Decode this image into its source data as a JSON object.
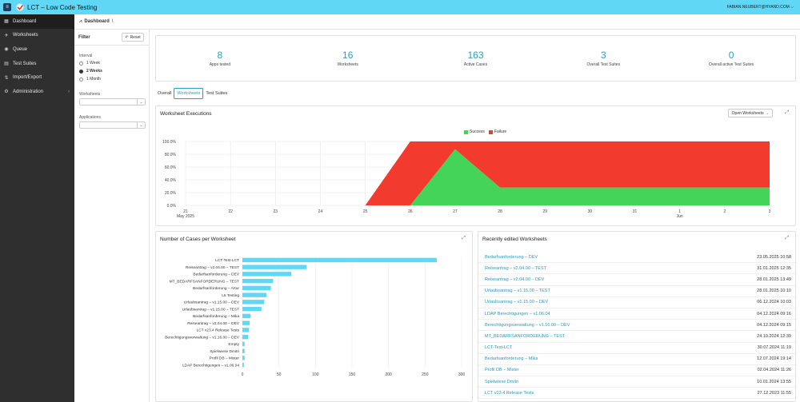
{
  "header": {
    "title": "LCT – Low Code Testing",
    "user": "FABIAN.NEUBERT@HYAND.COM ⌵"
  },
  "sidebar": {
    "items": [
      {
        "label": "Dashboard",
        "icon": "dashboard-icon",
        "glyph": "▦",
        "active": true
      },
      {
        "label": "Worksheets",
        "icon": "rocket-icon",
        "glyph": "✈"
      },
      {
        "label": "Queue",
        "icon": "queue-icon",
        "glyph": "◉"
      },
      {
        "label": "Test Suites",
        "icon": "document-icon",
        "glyph": "▤"
      },
      {
        "label": "Import/Export",
        "icon": "import-export-icon",
        "glyph": "⇅"
      },
      {
        "label": "Administration",
        "icon": "gear-icon",
        "glyph": "⚙",
        "chevron": "›"
      }
    ]
  },
  "breadcrumb": {
    "label": "Dashboard",
    "sep": "\\"
  },
  "filter": {
    "title": "Filter",
    "reset": "Reset",
    "interval_label": "Interval",
    "intervals": [
      "1 Week",
      "2 Weeks",
      "1 Month"
    ],
    "selected": 1,
    "worksheets_label": "Worksheets",
    "applications_label": "Applications"
  },
  "stats": [
    {
      "value": "8",
      "label": "Apps tested"
    },
    {
      "value": "16",
      "label": "Worksheets"
    },
    {
      "value": "163",
      "label": "Active Cases"
    },
    {
      "value": "3",
      "label": "Overall Test Suites"
    },
    {
      "value": "0",
      "label": "Overall active Test Suites"
    }
  ],
  "tabs": [
    "Overall",
    "Worksheets",
    "Test Suites"
  ],
  "active_tab": 1,
  "executions": {
    "title": "Worksheet Executions",
    "open_button": "Open Worksheets →",
    "legend": [
      "Success",
      "Failure"
    ]
  },
  "cases": {
    "title": "Number of Cases per Worksheet"
  },
  "recent": {
    "title": "Recently edited Worksheets",
    "rows": [
      {
        "name": "Bedarfsanforderung – DEV",
        "date": "23.05.2025 10:58"
      },
      {
        "name": "Reiseantrag – v2.04.00 – TEST",
        "date": "31.01.2025 12:35"
      },
      {
        "name": "Reiseantrag – v2.04.00 – DEV",
        "date": "28.01.2025 13:49"
      },
      {
        "name": "Urlaubsantrag – v1.15.00 – TEST",
        "date": "28.01.2025 10:10"
      },
      {
        "name": "Urlaubsantrag – v1.15.00 – DEV",
        "date": "06.12.2024 10:03"
      },
      {
        "name": "LDAP Berechtigungen – v1.06.04",
        "date": "04.12.2024 09:16"
      },
      {
        "name": "Berechtigungsverwaltung – v1.16.00 – DEV",
        "date": "04.12.2024 09:15"
      },
      {
        "name": "MT_BEDARFSANFORDERUNG – TEST",
        "date": "24.10.2024 12:39"
      },
      {
        "name": "LCT-Test-LCT",
        "date": "30.07.2024 11:19"
      },
      {
        "name": "Bedarfsanforderung – Mika",
        "date": "12.07.2024 19:14"
      },
      {
        "name": "Profil DB – Mister",
        "date": "02.04.2024 11:26"
      },
      {
        "name": "Spielwiese Dmitri",
        "date": "10.01.2024 13:55"
      },
      {
        "name": "LCT v23.4 Release Tests",
        "date": "27.12.2023 11:55"
      }
    ]
  },
  "chart_data": [
    {
      "type": "area",
      "title": "Worksheet Executions",
      "x": [
        "21",
        "22",
        "23",
        "24",
        "25",
        "26",
        "27",
        "28",
        "29",
        "30",
        "31",
        "1",
        "2",
        "3"
      ],
      "x_sublabels": {
        "0": "May 2025",
        "11": "Jun"
      },
      "y_ticks": [
        "0.0%",
        "20.0%",
        "40.0%",
        "60.0%",
        "80.0%",
        "100.0%"
      ],
      "ylim": [
        0,
        100
      ],
      "stacked": true,
      "series": [
        {
          "name": "Success",
          "color": "#44d45a",
          "values": [
            0,
            0,
            0,
            0,
            0,
            0,
            88,
            28,
            28,
            28,
            28,
            28,
            28,
            28
          ]
        },
        {
          "name": "Failure",
          "color": "#f23a2f",
          "values": [
            0,
            0,
            0,
            0,
            0,
            100,
            12,
            72,
            72,
            72,
            72,
            72,
            72,
            72
          ]
        }
      ],
      "legend": "top-center"
    },
    {
      "type": "bar",
      "orientation": "horizontal",
      "title": "Number of Cases per Worksheet",
      "categories": [
        "LCT-Test-LCT",
        "Reiseantrag – v2.04.00 – TEST",
        "Bedarfsanforderung – DEV",
        "MT_BEDARFSANFORDERUNG – TEST",
        "Bedarfsanforderung – Artur",
        "L5 Testing",
        "Urlaubsantrag – v1.15.00 – DEV",
        "Urlaubsantrag – v1.15.00 – TEST",
        "Bedarfsanforderung – Mika",
        "Reiseantrag – v2.04.00 – DEV",
        "LCT v23.4 Release Tests",
        "Berechtigungsverwaltung – v1.16.00 – DEV",
        "Empty",
        "Spielwiese Dmitri",
        "Profil DB – Mister",
        "LDAP Berechtigungen – v1.06.04"
      ],
      "values": [
        266,
        88,
        67,
        42,
        39,
        33,
        30,
        26,
        11,
        10,
        9,
        8,
        3,
        3,
        3,
        2
      ],
      "xlim": [
        0,
        300
      ],
      "x_ticks": [
        "0",
        "50",
        "100",
        "150",
        "200",
        "250",
        "300"
      ],
      "color": "#5fd7f5"
    }
  ]
}
